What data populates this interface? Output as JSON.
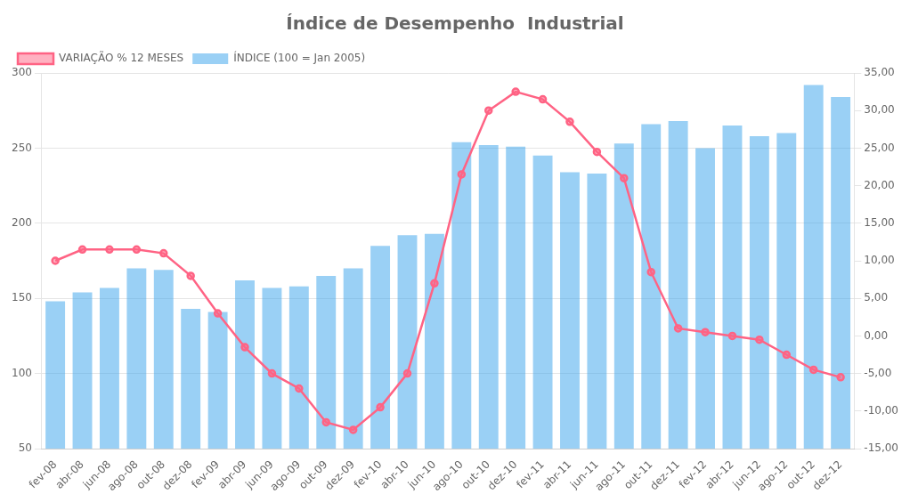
{
  "chart_data": {
    "type": "bar",
    "title": "Índice de Desempenho  Industrial",
    "categories": [
      "fev-08",
      "abr-08",
      "jun-08",
      "ago-08",
      "out-08",
      "dez-08",
      "fev-09",
      "abr-09",
      "jun-09",
      "ago-09",
      "out-09",
      "dez-09",
      "fev-10",
      "abr-10",
      "jun-10",
      "ago-10",
      "out-10",
      "dez-10",
      "fev-11",
      "abr-11",
      "jun-11",
      "ago-11",
      "out-11",
      "dez-11",
      "fev-12",
      "abr-12",
      "jun-12",
      "ago-12",
      "out-12",
      "dez-12"
    ],
    "series": [
      {
        "name": "ÍNDICE (100 = Jan 2005)",
        "type": "bar",
        "values": [
          148,
          154,
          157,
          170,
          169,
          143,
          141,
          162,
          157,
          158,
          165,
          170,
          185,
          192,
          193,
          254,
          252,
          251,
          245,
          234,
          233,
          253,
          266,
          268,
          250,
          265,
          258,
          260,
          292,
          284
        ]
      },
      {
        "name": "VARIAÇÃO % 12 MESES",
        "type": "line",
        "axis": "y2",
        "marker": "circle",
        "values": [
          10.0,
          11.5,
          11.5,
          11.5,
          11.0,
          8.0,
          3.0,
          -1.5,
          -5.0,
          -7.0,
          -11.5,
          -12.5,
          -9.5,
          -5.0,
          7.0,
          21.5,
          30.0,
          32.5,
          31.5,
          28.5,
          24.5,
          21.0,
          8.5,
          1.0,
          0.5,
          0.0,
          -0.5,
          -2.5,
          -4.5,
          -5.5
        ]
      }
    ],
    "ylim": [
      50,
      300
    ],
    "yticks": [
      50,
      100,
      150,
      200,
      250,
      300
    ],
    "y2lim": [
      -15,
      35
    ],
    "y2ticks": [
      {
        "value": -15,
        "label": "-15,00"
      },
      {
        "value": -10,
        "label": "-10,00"
      },
      {
        "value": -5,
        "label": "-5,00"
      },
      {
        "value": 0,
        "label": "0,00"
      },
      {
        "value": 5,
        "label": "5,00"
      },
      {
        "value": 10,
        "label": "10,00"
      },
      {
        "value": 15,
        "label": "15,00"
      },
      {
        "value": 20,
        "label": "20,00"
      },
      {
        "value": 25,
        "label": "25,00"
      },
      {
        "value": 30,
        "label": "30,00"
      },
      {
        "value": 35,
        "label": "35,00"
      }
    ],
    "grid": true,
    "legend": "upper left"
  }
}
